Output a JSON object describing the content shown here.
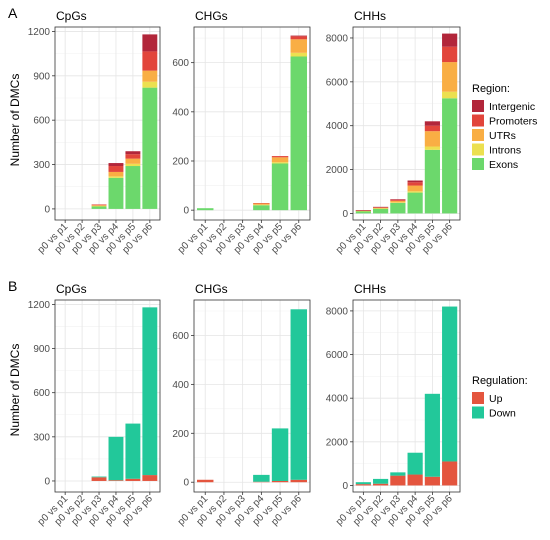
{
  "figure": {
    "panel_letters": [
      "A",
      "B"
    ],
    "ylabel": "Number of DMCs"
  },
  "legend_region": {
    "title": "Region:",
    "items": [
      {
        "label": "Intergenic",
        "color": "#b2263a"
      },
      {
        "label": "Promoters",
        "color": "#e2453b"
      },
      {
        "label": "UTRs",
        "color": "#f9ae44"
      },
      {
        "label": "Introns",
        "color": "#ece050"
      },
      {
        "label": "Exons",
        "color": "#6cd86c"
      }
    ]
  },
  "legend_regulation": {
    "title": "Regulation:",
    "items": [
      {
        "label": "Up",
        "color": "#e4553e"
      },
      {
        "label": "Down",
        "color": "#22c89a"
      }
    ]
  },
  "chart_data": [
    {
      "type": "bar",
      "stacked": true,
      "row": "A",
      "title": "CpGs",
      "categories": [
        "p0 vs p1",
        "p0 vs p2",
        "p0 vs p3",
        "p0 vs p4",
        "p0 vs p5",
        "p0 vs p6"
      ],
      "ylim": [
        -75,
        1230
      ],
      "yticks": [
        0,
        300,
        600,
        900,
        1200
      ],
      "series": [
        {
          "name": "Exons",
          "values": [
            0,
            0,
            18,
            210,
            290,
            820
          ]
        },
        {
          "name": "Introns",
          "values": [
            0,
            0,
            2,
            10,
            15,
            40
          ]
        },
        {
          "name": "UTRs",
          "values": [
            0,
            0,
            5,
            30,
            35,
            75
          ]
        },
        {
          "name": "Promoters",
          "values": [
            0,
            0,
            5,
            40,
            30,
            130
          ]
        },
        {
          "name": "Intergenic",
          "values": [
            0,
            0,
            0,
            20,
            20,
            115
          ]
        }
      ]
    },
    {
      "type": "bar",
      "stacked": true,
      "row": "A",
      "title": "CHGs",
      "categories": [
        "p0 vs p1",
        "p0 vs p2",
        "p0 vs p3",
        "p0 vs p4",
        "p0 vs p5",
        "p0 vs p6"
      ],
      "ylim": [
        -40,
        745
      ],
      "yticks": [
        0,
        200,
        400,
        600
      ],
      "series": [
        {
          "name": "Exons",
          "values": [
            8,
            0,
            0,
            20,
            190,
            625
          ]
        },
        {
          "name": "Introns",
          "values": [
            0,
            0,
            0,
            2,
            5,
            15
          ]
        },
        {
          "name": "UTRs",
          "values": [
            0,
            0,
            0,
            5,
            20,
            55
          ]
        },
        {
          "name": "Promoters",
          "values": [
            0,
            0,
            0,
            2,
            5,
            12
          ]
        },
        {
          "name": "Intergenic",
          "values": [
            0,
            0,
            0,
            0,
            0,
            3
          ]
        }
      ]
    },
    {
      "type": "bar",
      "stacked": true,
      "row": "A",
      "title": "CHHs",
      "categories": [
        "p0 vs p1",
        "p0 vs p2",
        "p0 vs p3",
        "p0 vs p4",
        "p0 vs p5",
        "p0 vs p6"
      ],
      "ylim": [
        -300,
        8500
      ],
      "yticks": [
        0,
        2000,
        4000,
        6000,
        8000
      ],
      "series": [
        {
          "name": "Exons",
          "values": [
            110,
            220,
            480,
            950,
            2900,
            5250
          ]
        },
        {
          "name": "Introns",
          "values": [
            5,
            10,
            25,
            60,
            150,
            300
          ]
        },
        {
          "name": "UTRs",
          "values": [
            15,
            30,
            70,
            260,
            700,
            1350
          ]
        },
        {
          "name": "Promoters",
          "values": [
            10,
            30,
            50,
            150,
            250,
            700
          ]
        },
        {
          "name": "Intergenic",
          "values": [
            5,
            10,
            25,
            80,
            200,
            600
          ]
        }
      ]
    },
    {
      "type": "bar",
      "stacked": true,
      "row": "B",
      "title": "CpGs",
      "categories": [
        "p0 vs p1",
        "p0 vs p2",
        "p0 vs p3",
        "p0 vs p4",
        "p0 vs p5",
        "p0 vs p6"
      ],
      "ylim": [
        -75,
        1230
      ],
      "yticks": [
        0,
        300,
        600,
        900,
        1200
      ],
      "series": [
        {
          "name": "Up",
          "values": [
            0,
            0,
            25,
            5,
            15,
            40
          ]
        },
        {
          "name": "Down",
          "values": [
            0,
            0,
            5,
            295,
            375,
            1140
          ]
        }
      ]
    },
    {
      "type": "bar",
      "stacked": true,
      "row": "B",
      "title": "CHGs",
      "categories": [
        "p0 vs p1",
        "p0 vs p2",
        "p0 vs p3",
        "p0 vs p4",
        "p0 vs p5",
        "p0 vs p6"
      ],
      "ylim": [
        -40,
        745
      ],
      "yticks": [
        0,
        200,
        400,
        600
      ],
      "series": [
        {
          "name": "Up",
          "values": [
            10,
            0,
            0,
            2,
            5,
            10
          ]
        },
        {
          "name": "Down",
          "values": [
            0,
            0,
            0,
            28,
            215,
            697
          ]
        }
      ]
    },
    {
      "type": "bar",
      "stacked": true,
      "row": "B",
      "title": "CHHs",
      "categories": [
        "p0 vs p1",
        "p0 vs p2",
        "p0 vs p3",
        "p0 vs p4",
        "p0 vs p5",
        "p0 vs p6"
      ],
      "ylim": [
        -300,
        8500
      ],
      "yticks": [
        0,
        2000,
        4000,
        6000,
        8000
      ],
      "series": [
        {
          "name": "Up",
          "values": [
            60,
            80,
            450,
            500,
            400,
            1100
          ]
        },
        {
          "name": "Down",
          "values": [
            90,
            220,
            150,
            1000,
            3800,
            7100
          ]
        }
      ]
    }
  ]
}
